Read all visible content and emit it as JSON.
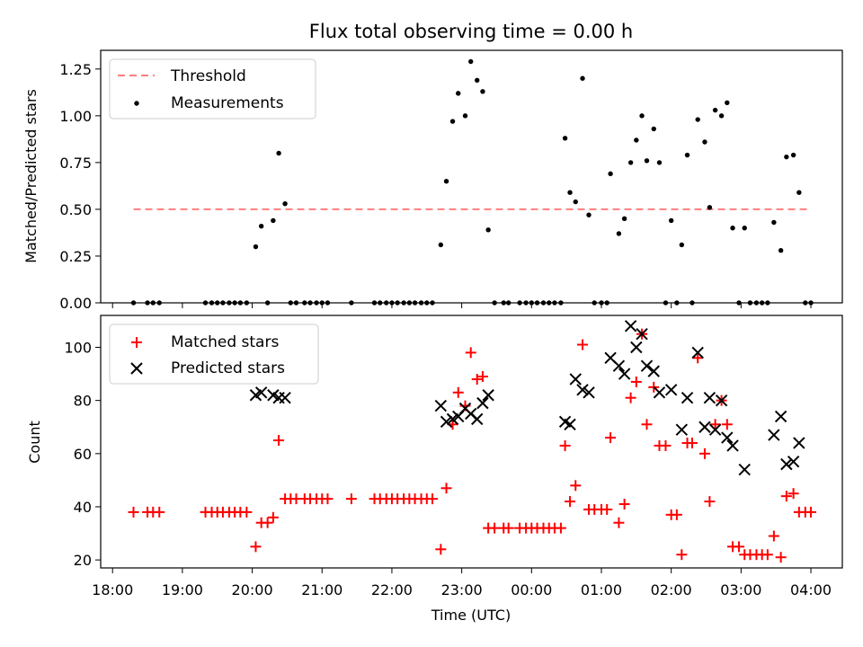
{
  "chart_data": [
    {
      "type": "scatter",
      "title": "Flux total observing time = 0.00 h",
      "xlabel": "",
      "ylabel": "Matched/Predicted stars",
      "ylim": [
        0,
        1.35
      ],
      "yticks": [
        "0.00",
        "0.25",
        "0.50",
        "0.75",
        "1.00",
        "1.25"
      ],
      "grid": false,
      "legend_position": "top-left",
      "threshold": {
        "name": "Threshold",
        "value": 0.5,
        "x_start": 18.3,
        "x_end": 28.0,
        "color": "#ff7f7f",
        "dash": "dashed"
      },
      "series": [
        {
          "name": "Measurements",
          "marker": "dot",
          "color": "#000000",
          "points": [
            [
              18.3,
              0
            ],
            [
              18.5,
              0
            ],
            [
              18.58,
              0
            ],
            [
              18.67,
              0
            ],
            [
              19.33,
              0
            ],
            [
              19.42,
              0
            ],
            [
              19.5,
              0
            ],
            [
              19.58,
              0
            ],
            [
              19.67,
              0
            ],
            [
              19.75,
              0
            ],
            [
              19.83,
              0
            ],
            [
              19.92,
              0
            ],
            [
              20.05,
              0.3
            ],
            [
              20.13,
              0.41
            ],
            [
              20.22,
              0
            ],
            [
              20.3,
              0.44
            ],
            [
              20.38,
              0.8
            ],
            [
              20.47,
              0.53
            ],
            [
              20.55,
              0
            ],
            [
              20.63,
              0
            ],
            [
              20.75,
              0
            ],
            [
              20.83,
              0
            ],
            [
              20.92,
              0
            ],
            [
              21.0,
              0
            ],
            [
              21.08,
              0
            ],
            [
              21.42,
              0
            ],
            [
              21.75,
              0
            ],
            [
              21.83,
              0
            ],
            [
              21.92,
              0
            ],
            [
              22.0,
              0
            ],
            [
              22.08,
              0
            ],
            [
              22.17,
              0
            ],
            [
              22.25,
              0
            ],
            [
              22.33,
              0
            ],
            [
              22.42,
              0
            ],
            [
              22.5,
              0
            ],
            [
              22.58,
              0
            ],
            [
              22.7,
              0.31
            ],
            [
              22.78,
              0.65
            ],
            [
              22.87,
              0.97
            ],
            [
              22.95,
              1.12
            ],
            [
              23.05,
              1.0
            ],
            [
              23.13,
              1.29
            ],
            [
              23.22,
              1.19
            ],
            [
              23.3,
              1.13
            ],
            [
              23.38,
              0.39
            ],
            [
              23.47,
              0
            ],
            [
              23.6,
              0
            ],
            [
              23.67,
              0
            ],
            [
              23.83,
              0
            ],
            [
              23.92,
              0
            ],
            [
              24.0,
              0
            ],
            [
              24.08,
              0
            ],
            [
              24.17,
              0
            ],
            [
              24.25,
              0
            ],
            [
              24.33,
              0
            ],
            [
              24.42,
              0
            ],
            [
              24.48,
              0.88
            ],
            [
              24.55,
              0.59
            ],
            [
              24.63,
              0.54
            ],
            [
              24.73,
              1.2
            ],
            [
              24.82,
              0.47
            ],
            [
              24.9,
              0
            ],
            [
              25.0,
              0
            ],
            [
              25.08,
              0
            ],
            [
              25.13,
              0.69
            ],
            [
              25.25,
              0.37
            ],
            [
              25.33,
              0.45
            ],
            [
              25.42,
              0.75
            ],
            [
              25.5,
              0.87
            ],
            [
              25.58,
              1.0
            ],
            [
              25.65,
              0.76
            ],
            [
              25.75,
              0.93
            ],
            [
              25.83,
              0.75
            ],
            [
              25.92,
              0
            ],
            [
              26.0,
              0.44
            ],
            [
              26.08,
              0
            ],
            [
              26.15,
              0.31
            ],
            [
              26.23,
              0.79
            ],
            [
              26.3,
              0
            ],
            [
              26.38,
              0.98
            ],
            [
              26.48,
              0.86
            ],
            [
              26.55,
              0.51
            ],
            [
              26.63,
              1.03
            ],
            [
              26.72,
              1.0
            ],
            [
              26.8,
              1.07
            ],
            [
              26.88,
              0.4
            ],
            [
              26.97,
              0
            ],
            [
              27.05,
              0.4
            ],
            [
              27.13,
              0
            ],
            [
              27.22,
              0
            ],
            [
              27.3,
              0
            ],
            [
              27.38,
              0
            ],
            [
              27.47,
              0.43
            ],
            [
              27.57,
              0.28
            ],
            [
              27.65,
              0.78
            ],
            [
              27.75,
              0.79
            ],
            [
              27.83,
              0.59
            ],
            [
              27.92,
              0
            ],
            [
              28.0,
              0
            ]
          ]
        }
      ]
    },
    {
      "type": "scatter",
      "title": "",
      "xlabel": "Time (UTC)",
      "ylabel": "Count",
      "xlim": [
        17.83,
        28.45
      ],
      "ylim": [
        17,
        112
      ],
      "xticks": [
        "18:00",
        "19:00",
        "20:00",
        "21:00",
        "22:00",
        "23:00",
        "00:00",
        "01:00",
        "02:00",
        "03:00",
        "04:00"
      ],
      "xtick_hours": [
        18,
        19,
        20,
        21,
        22,
        23,
        24,
        25,
        26,
        27,
        28
      ],
      "yticks": [
        "20",
        "40",
        "60",
        "80",
        "100"
      ],
      "grid": false,
      "legend_position": "top-left",
      "series": [
        {
          "name": "Matched stars",
          "marker": "plus",
          "color": "#ff0000",
          "points": [
            [
              18.3,
              38
            ],
            [
              18.5,
              38
            ],
            [
              18.58,
              38
            ],
            [
              18.67,
              38
            ],
            [
              19.33,
              38
            ],
            [
              19.42,
              38
            ],
            [
              19.5,
              38
            ],
            [
              19.58,
              38
            ],
            [
              19.67,
              38
            ],
            [
              19.75,
              38
            ],
            [
              19.83,
              38
            ],
            [
              19.92,
              38
            ],
            [
              20.05,
              25
            ],
            [
              20.13,
              34
            ],
            [
              20.22,
              34
            ],
            [
              20.3,
              36
            ],
            [
              20.38,
              65
            ],
            [
              20.47,
              43
            ],
            [
              20.55,
              43
            ],
            [
              20.63,
              43
            ],
            [
              20.75,
              43
            ],
            [
              20.83,
              43
            ],
            [
              20.92,
              43
            ],
            [
              21.0,
              43
            ],
            [
              21.08,
              43
            ],
            [
              21.42,
              43
            ],
            [
              21.75,
              43
            ],
            [
              21.83,
              43
            ],
            [
              21.92,
              43
            ],
            [
              22.0,
              43
            ],
            [
              22.08,
              43
            ],
            [
              22.17,
              43
            ],
            [
              22.25,
              43
            ],
            [
              22.33,
              43
            ],
            [
              22.42,
              43
            ],
            [
              22.5,
              43
            ],
            [
              22.58,
              43
            ],
            [
              22.7,
              24
            ],
            [
              22.78,
              47
            ],
            [
              22.87,
              71
            ],
            [
              22.95,
              83
            ],
            [
              23.05,
              78
            ],
            [
              23.13,
              98
            ],
            [
              23.22,
              88
            ],
            [
              23.3,
              89
            ],
            [
              23.38,
              32
            ],
            [
              23.47,
              32
            ],
            [
              23.6,
              32
            ],
            [
              23.67,
              32
            ],
            [
              23.83,
              32
            ],
            [
              23.92,
              32
            ],
            [
              24.0,
              32
            ],
            [
              24.08,
              32
            ],
            [
              24.17,
              32
            ],
            [
              24.25,
              32
            ],
            [
              24.33,
              32
            ],
            [
              24.42,
              32
            ],
            [
              24.48,
              63
            ],
            [
              24.55,
              42
            ],
            [
              24.63,
              48
            ],
            [
              24.73,
              101
            ],
            [
              24.82,
              39
            ],
            [
              24.9,
              39
            ],
            [
              25.0,
              39
            ],
            [
              25.08,
              39
            ],
            [
              25.13,
              66
            ],
            [
              25.25,
              34
            ],
            [
              25.33,
              41
            ],
            [
              25.42,
              81
            ],
            [
              25.5,
              87
            ],
            [
              25.58,
              105
            ],
            [
              25.65,
              71
            ],
            [
              25.75,
              85
            ],
            [
              25.83,
              63
            ],
            [
              25.92,
              63
            ],
            [
              26.0,
              37
            ],
            [
              26.08,
              37
            ],
            [
              26.15,
              22
            ],
            [
              26.23,
              64
            ],
            [
              26.3,
              64
            ],
            [
              26.38,
              96
            ],
            [
              26.48,
              60
            ],
            [
              26.55,
              42
            ],
            [
              26.63,
              71
            ],
            [
              26.72,
              80
            ],
            [
              26.8,
              71
            ],
            [
              26.88,
              25
            ],
            [
              26.97,
              25
            ],
            [
              27.05,
              22
            ],
            [
              27.13,
              22
            ],
            [
              27.22,
              22
            ],
            [
              27.3,
              22
            ],
            [
              27.38,
              22
            ],
            [
              27.47,
              29
            ],
            [
              27.57,
              21
            ],
            [
              27.65,
              44
            ],
            [
              27.75,
              45
            ],
            [
              27.83,
              38
            ],
            [
              27.92,
              38
            ],
            [
              28.0,
              38
            ]
          ]
        },
        {
          "name": "Predicted stars",
          "marker": "x",
          "color": "#000000",
          "points": [
            [
              20.05,
              82
            ],
            [
              20.13,
              83
            ],
            [
              20.3,
              82
            ],
            [
              20.38,
              81
            ],
            [
              20.47,
              81
            ],
            [
              22.7,
              78
            ],
            [
              22.78,
              72
            ],
            [
              22.87,
              73
            ],
            [
              22.95,
              74
            ],
            [
              23.05,
              77
            ],
            [
              23.13,
              75
            ],
            [
              23.22,
              73
            ],
            [
              23.3,
              79
            ],
            [
              23.38,
              82
            ],
            [
              24.48,
              72
            ],
            [
              24.55,
              71
            ],
            [
              24.63,
              88
            ],
            [
              24.73,
              84
            ],
            [
              24.82,
              83
            ],
            [
              25.13,
              96
            ],
            [
              25.25,
              93
            ],
            [
              25.33,
              90
            ],
            [
              25.42,
              108
            ],
            [
              25.5,
              100
            ],
            [
              25.58,
              105
            ],
            [
              25.65,
              93
            ],
            [
              25.75,
              91
            ],
            [
              25.83,
              83
            ],
            [
              26.0,
              84
            ],
            [
              26.15,
              69
            ],
            [
              26.23,
              81
            ],
            [
              26.38,
              98
            ],
            [
              26.48,
              70
            ],
            [
              26.55,
              81
            ],
            [
              26.63,
              69
            ],
            [
              26.72,
              80
            ],
            [
              26.8,
              66
            ],
            [
              26.88,
              63
            ],
            [
              27.05,
              54
            ],
            [
              27.47,
              67
            ],
            [
              27.57,
              74
            ],
            [
              27.65,
              56
            ],
            [
              27.75,
              57
            ],
            [
              27.83,
              64
            ]
          ]
        }
      ]
    }
  ]
}
